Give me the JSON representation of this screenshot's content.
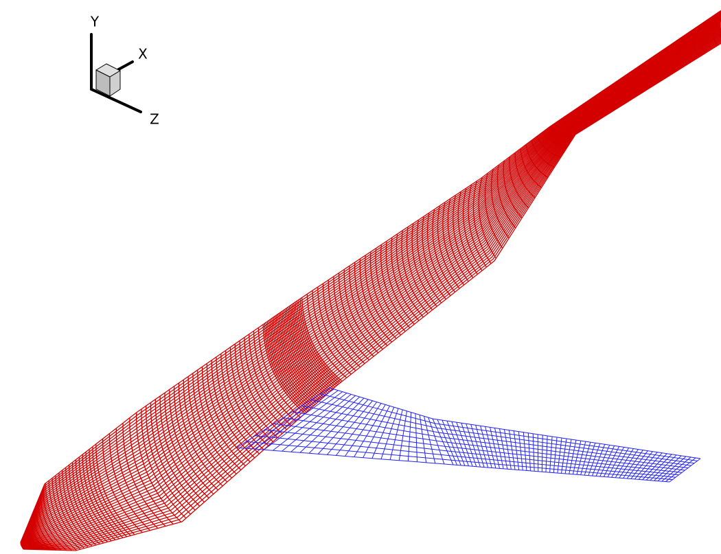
{
  "axes": {
    "y_label": "Y",
    "x_label": "X",
    "z_label": "Z"
  }
}
